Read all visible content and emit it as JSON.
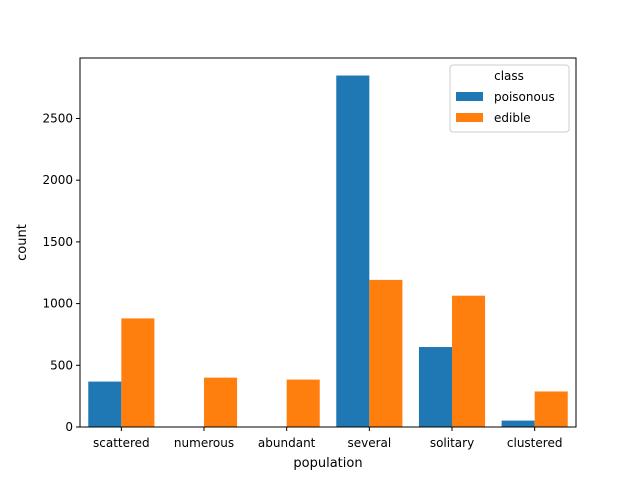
{
  "chart_data": {
    "type": "bar",
    "xlabel": "population",
    "ylabel": "count",
    "categories": [
      "scattered",
      "numerous",
      "abundant",
      "several",
      "solitary",
      "clustered"
    ],
    "series": [
      {
        "name": "poisonous",
        "color": "#1f77b4",
        "values": [
          368,
          0,
          0,
          2848,
          648,
          52
        ]
      },
      {
        "name": "edible",
        "color": "#ff7f0e",
        "values": [
          880,
          400,
          384,
          1192,
          1064,
          288
        ]
      }
    ],
    "ylim": [
      0,
      2990
    ],
    "yticks": [
      0,
      500,
      1000,
      1500,
      2000,
      2500
    ],
    "legend": {
      "title": "class",
      "placement": "top-right"
    },
    "grid": false
  }
}
